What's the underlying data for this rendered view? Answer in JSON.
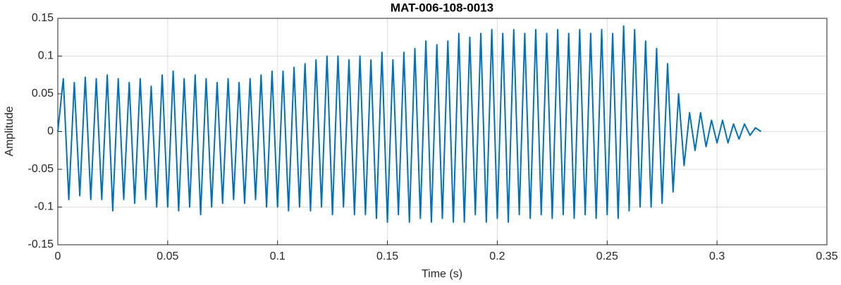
{
  "chart_data": {
    "type": "line",
    "title": "MAT-006-108-0013",
    "xlabel": "Time (s)",
    "ylabel": "Amplitude",
    "color": "#0072bd",
    "grid": true,
    "xlim": [
      0,
      0.35
    ],
    "xticks": [
      0,
      0.05,
      0.1,
      0.15,
      0.2,
      0.25,
      0.3,
      0.35
    ],
    "ylim": [
      -0.15,
      0.15
    ],
    "yticks": [
      -0.15,
      -0.1,
      -0.05,
      0,
      0.05,
      0.1,
      0.15
    ],
    "x": [
      0,
      0.0025,
      0.005,
      0.0075,
      0.01,
      0.0125,
      0.015,
      0.0175,
      0.02,
      0.0225,
      0.025,
      0.0275,
      0.03,
      0.0325,
      0.035,
      0.0375,
      0.04,
      0.0425,
      0.045,
      0.0475,
      0.05,
      0.0525,
      0.055,
      0.0575,
      0.06,
      0.0625,
      0.065,
      0.0675,
      0.07,
      0.0725,
      0.075,
      0.0775,
      0.08,
      0.0825,
      0.085,
      0.0875,
      0.09,
      0.0925,
      0.095,
      0.0975,
      0.1,
      0.1025,
      0.105,
      0.1075,
      0.11,
      0.1125,
      0.115,
      0.1175,
      0.12,
      0.1225,
      0.125,
      0.1275,
      0.13,
      0.1325,
      0.135,
      0.1375,
      0.14,
      0.1425,
      0.145,
      0.1475,
      0.15,
      0.1525,
      0.155,
      0.1575,
      0.16,
      0.1625,
      0.165,
      0.1675,
      0.17,
      0.1725,
      0.175,
      0.1775,
      0.18,
      0.1825,
      0.185,
      0.1875,
      0.19,
      0.1925,
      0.195,
      0.1975,
      0.2,
      0.2025,
      0.205,
      0.2075,
      0.21,
      0.2125,
      0.215,
      0.2175,
      0.22,
      0.2225,
      0.225,
      0.2275,
      0.23,
      0.2325,
      0.235,
      0.2375,
      0.24,
      0.2425,
      0.245,
      0.2475,
      0.25,
      0.2525,
      0.255,
      0.2575,
      0.26,
      0.2625,
      0.265,
      0.2675,
      0.27,
      0.2725,
      0.275,
      0.2775,
      0.28,
      0.2825,
      0.285,
      0.2875,
      0.29,
      0.2925,
      0.295,
      0.2975,
      0.3,
      0.3025,
      0.305,
      0.3075,
      0.31,
      0.3125,
      0.315,
      0.3175,
      0.32
    ],
    "values": [
      0,
      0.07,
      -0.09,
      0.065,
      -0.085,
      0.072,
      -0.09,
      0.07,
      -0.09,
      0.075,
      -0.105,
      0.07,
      -0.09,
      0.065,
      -0.095,
      0.07,
      -0.09,
      0.06,
      -0.1,
      0.075,
      -0.1,
      0.08,
      -0.105,
      0.07,
      -0.1,
      0.075,
      -0.11,
      0.07,
      -0.1,
      0.065,
      -0.095,
      0.07,
      -0.09,
      0.065,
      -0.095,
      0.07,
      -0.09,
      0.075,
      -0.1,
      0.08,
      -0.1,
      0.08,
      -0.105,
      0.085,
      -0.1,
      0.09,
      -0.105,
      0.095,
      -0.1,
      0.1,
      -0.11,
      0.1,
      -0.1,
      0.095,
      -0.11,
      0.1,
      -0.11,
      0.095,
      -0.115,
      0.105,
      -0.12,
      0.095,
      -0.11,
      0.105,
      -0.12,
      0.11,
      -0.115,
      0.12,
      -0.12,
      0.115,
      -0.115,
      0.12,
      -0.12,
      0.13,
      -0.12,
      0.125,
      -0.11,
      0.13,
      -0.12,
      0.135,
      -0.115,
      0.13,
      -0.12,
      0.135,
      -0.11,
      0.13,
      -0.115,
      0.135,
      -0.11,
      0.13,
      -0.115,
      0.135,
      -0.11,
      0.13,
      -0.115,
      0.135,
      -0.11,
      0.13,
      -0.115,
      0.135,
      -0.11,
      0.13,
      -0.115,
      0.14,
      -0.105,
      0.135,
      -0.1,
      0.12,
      -0.1,
      0.11,
      -0.095,
      0.09,
      -0.08,
      0.05,
      -0.045,
      0.025,
      -0.025,
      0.025,
      -0.02,
      0.015,
      -0.015,
      0.015,
      -0.015,
      0.01,
      -0.01,
      0.01,
      -0.005,
      0.005,
      0
    ]
  }
}
